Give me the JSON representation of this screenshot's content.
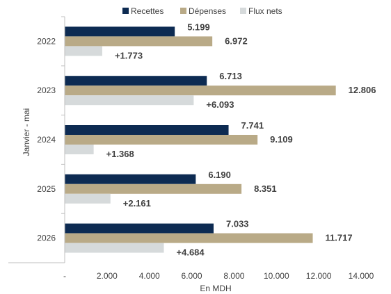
{
  "chart_data": {
    "type": "bar",
    "orientation": "horizontal",
    "categories": [
      "2022",
      "2023",
      "2024",
      "2025",
      "2026"
    ],
    "series": [
      {
        "name": "Recettes",
        "color": "#0d2b52",
        "values": [
          5199,
          6713,
          7741,
          6190,
          7033
        ],
        "labels": [
          "5.199",
          "6.713",
          "7.741",
          "6.190",
          "7.033"
        ]
      },
      {
        "name": "Dépenses",
        "color": "#b9aa87",
        "values": [
          6972,
          12806,
          9109,
          8351,
          11717
        ],
        "labels": [
          "6.972",
          "12.806",
          "9.109",
          "8.351",
          "11.717"
        ]
      },
      {
        "name": "Flux nets",
        "color": "#d6dadb",
        "values": [
          1773,
          6093,
          1368,
          2161,
          4684
        ],
        "labels": [
          "+1.773",
          "+6.093",
          "+1.368",
          "+2.161",
          "+4.684"
        ]
      }
    ],
    "xlabel": "En MDH",
    "ylabel": "Janvier - mai",
    "xlim": [
      0,
      14000
    ],
    "xticks": [
      0,
      2000,
      4000,
      6000,
      8000,
      10000,
      12000,
      14000
    ],
    "xtick_labels": [
      "-",
      "2.000",
      "4.000",
      "6.000",
      "8.000",
      "10.000",
      "12.000",
      "14.000"
    ],
    "legend_position": "top",
    "grid": false
  }
}
